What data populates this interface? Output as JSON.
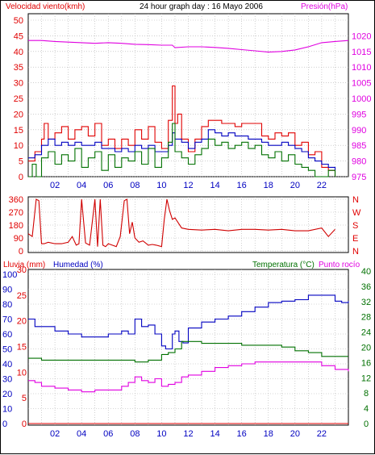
{
  "chart_data": [
    {
      "type": "line",
      "header": {
        "left_label": "Velocidad viento(kmh)",
        "title": "24 hour graph day : 16 Mayo 2006",
        "right_label": "Presión(hPa)"
      },
      "left_ticks": [
        "0",
        "5",
        "10",
        "15",
        "20",
        "25",
        "30",
        "35",
        "40",
        "45",
        "50"
      ],
      "right_ticks": [
        "975",
        "980",
        "985",
        "990",
        "995",
        "1000",
        "1005",
        "1010",
        "1015",
        "1020"
      ],
      "x_ticks": [
        "02",
        "04",
        "06",
        "08",
        "10",
        "12",
        "14",
        "16",
        "18",
        "20",
        "22"
      ],
      "xlim": [
        0,
        24
      ],
      "ylim_left": [
        0,
        50
      ],
      "ylim_right": [
        975,
        1025
      ],
      "series": [
        {
          "name": "Presión(hPa)",
          "axis": "right",
          "color": "#e000e0",
          "x": [
            0,
            1,
            2,
            3,
            4,
            5,
            6,
            7,
            8,
            9,
            10,
            10.8,
            11,
            12,
            13,
            14,
            15,
            16,
            17,
            18,
            19,
            20,
            21,
            22,
            23,
            24
          ],
          "y": [
            1018.5,
            1018.5,
            1018.2,
            1018,
            1017.8,
            1017.6,
            1017.8,
            1017.6,
            1017.3,
            1017.2,
            1017,
            1017,
            1016.2,
            1016.5,
            1016.5,
            1016.3,
            1016.0,
            1015.6,
            1015.2,
            1014.8,
            1015.0,
            1015.5,
            1016.5,
            1017.8,
            1018.2,
            1018.5
          ]
        },
        {
          "name": "Wind max",
          "axis": "left",
          "color": "#e00000",
          "x": [
            0,
            0.5,
            1,
            1.2,
            1.5,
            2,
            2.5,
            3,
            3.5,
            4,
            4.5,
            5,
            5.5,
            6,
            6.5,
            7,
            7.5,
            8,
            8.5,
            9,
            9.5,
            10,
            10.5,
            10.8,
            11,
            11.2,
            11.5,
            12,
            12.5,
            13,
            13.5,
            14,
            14.5,
            15,
            15.5,
            16,
            16.5,
            17,
            17.5,
            18,
            18.5,
            19,
            19.5,
            20,
            20.5,
            21,
            21.5,
            22,
            22.5,
            23
          ],
          "y": [
            5,
            8,
            12,
            17,
            12,
            14,
            16,
            12,
            15,
            16,
            13,
            17,
            10,
            12,
            9,
            12,
            10,
            15,
            12,
            16,
            11,
            9,
            18,
            29,
            17,
            20,
            12,
            8,
            12,
            16,
            18,
            18,
            17,
            17,
            16,
            17,
            17,
            17,
            13,
            12,
            14,
            13,
            14,
            10,
            11,
            7,
            8,
            3,
            2,
            0
          ]
        },
        {
          "name": "Wind avg",
          "axis": "left",
          "color": "#0000c0",
          "x": [
            0,
            0.5,
            1,
            1.5,
            2,
            2.5,
            3,
            3.5,
            4,
            4.5,
            5,
            5.5,
            6,
            6.5,
            7,
            7.5,
            8,
            8.5,
            9,
            9.5,
            10,
            10.5,
            10.8,
            11,
            11.5,
            12,
            12.5,
            13,
            13.5,
            14,
            14.5,
            15,
            15.5,
            16,
            16.5,
            17,
            17.5,
            18,
            18.5,
            19,
            19.5,
            20,
            20.5,
            21,
            21.5,
            22,
            22.5,
            23
          ],
          "y": [
            6,
            7,
            10,
            12,
            10,
            11,
            10,
            11,
            10,
            10,
            11,
            9,
            9,
            8,
            9,
            8,
            10,
            9,
            10,
            8,
            8,
            10,
            14,
            12,
            11,
            9,
            11,
            12,
            15,
            14,
            13,
            14,
            13,
            13,
            12,
            12,
            11,
            10,
            10,
            11,
            10,
            9,
            8,
            6,
            5,
            4,
            3,
            2
          ]
        },
        {
          "name": "Wind min",
          "axis": "left",
          "color": "#007000",
          "x": [
            0,
            0.3,
            0.6,
            1,
            1.5,
            2,
            2.5,
            3,
            3.5,
            4,
            4.5,
            5,
            5.5,
            6,
            6.5,
            7,
            7.5,
            8,
            8.5,
            9,
            9.5,
            10,
            10.5,
            10.8,
            11,
            11.5,
            12,
            12.5,
            13,
            13.5,
            14,
            14.5,
            15,
            15.5,
            16,
            16.5,
            17,
            17.5,
            18,
            18.5,
            19,
            19.5,
            20,
            20.5,
            21,
            21.5,
            22,
            22.5,
            23
          ],
          "y": [
            0,
            4,
            0,
            6,
            8,
            4,
            7,
            5,
            9,
            3,
            6,
            8,
            2,
            7,
            3,
            6,
            5,
            8,
            4,
            9,
            3,
            6,
            11,
            17,
            8,
            6,
            4,
            7,
            9,
            12,
            10,
            11,
            9,
            10,
            11,
            9,
            10,
            7,
            6,
            8,
            5,
            7,
            4,
            3,
            2,
            0,
            0,
            2,
            0
          ]
        }
      ]
    },
    {
      "type": "line",
      "left_ticks": [
        "0",
        "90",
        "180",
        "270",
        "360"
      ],
      "right_ticks": [
        "N",
        "E",
        "S",
        "W",
        "N"
      ],
      "ylim": [
        0,
        360
      ],
      "xlim": [
        0,
        24
      ],
      "series": [
        {
          "name": "Dirección",
          "color": "#d00000",
          "x": [
            0,
            0.3,
            0.6,
            0.8,
            1,
            1.2,
            1.5,
            2,
            2.5,
            3,
            3.3,
            3.6,
            3.8,
            4,
            4.3,
            4.6,
            5,
            5.2,
            5.4,
            5.6,
            5.8,
            6,
            6.3,
            6.6,
            6.9,
            7.2,
            7.4,
            7.6,
            7.8,
            8,
            8.3,
            8.6,
            9,
            9.3,
            9.6,
            10,
            10.2,
            10.4,
            10.6,
            10.8,
            11,
            11.5,
            12,
            13,
            14,
            15,
            16,
            17,
            18,
            19,
            20,
            21,
            22,
            22.5,
            23
          ],
          "y": [
            120,
            100,
            360,
            350,
            50,
            50,
            60,
            50,
            50,
            60,
            100,
            40,
            50,
            360,
            55,
            40,
            360,
            30,
            360,
            40,
            30,
            50,
            40,
            30,
            100,
            350,
            360,
            120,
            200,
            90,
            60,
            70,
            40,
            45,
            40,
            30,
            220,
            360,
            280,
            220,
            230,
            160,
            150,
            145,
            150,
            140,
            150,
            150,
            145,
            150,
            140,
            140,
            160,
            100,
            150
          ]
        }
      ]
    },
    {
      "type": "line",
      "header": {
        "left_label_1": "Lluvia (mm)",
        "left_label_2": "Humedad (%)",
        "right_label_1": "Temperatura (°C)",
        "right_label_2": "Punto rocío"
      },
      "rain_ticks": [
        "0",
        "5",
        "10",
        "15",
        "20",
        "25",
        "30"
      ],
      "hum_ticks": [
        "0",
        "10",
        "20",
        "30",
        "40",
        "50",
        "60",
        "70",
        "80",
        "90",
        "100"
      ],
      "temp_ticks": [
        "0",
        "4",
        "8",
        "12",
        "16",
        "20",
        "24",
        "28",
        "32",
        "36",
        "40"
      ],
      "x_ticks": [
        "02",
        "04",
        "06",
        "08",
        "10",
        "12",
        "14",
        "16",
        "18",
        "20",
        "22"
      ],
      "xlim": [
        0,
        24
      ],
      "ylim_left": [
        0,
        100
      ],
      "ylim_right": [
        0,
        40
      ],
      "series": [
        {
          "name": "Humedad (%)",
          "axis": "left",
          "color": "#0000c0",
          "x": [
            0,
            0.5,
            1,
            2,
            3,
            4,
            5,
            6,
            7,
            7.5,
            8,
            8.5,
            9,
            9.5,
            10,
            10.3,
            10.8,
            11,
            11.3,
            11.6,
            12,
            13,
            14,
            15,
            16,
            17,
            18,
            19,
            20,
            21,
            22,
            23,
            23.5,
            24
          ],
          "y": [
            70,
            65,
            65,
            62,
            60,
            58,
            58,
            60,
            62,
            60,
            70,
            65,
            66,
            60,
            52,
            50,
            60,
            62,
            55,
            54,
            64,
            68,
            70,
            72,
            75,
            78,
            81,
            82,
            83,
            86,
            86,
            82,
            81,
            82
          ]
        },
        {
          "name": "Temperatura (°C)",
          "axis": "right",
          "color": "#007000",
          "x": [
            0,
            1,
            2,
            3,
            4,
            5,
            6,
            7,
            8,
            9,
            10,
            10.5,
            11,
            11.5,
            12,
            13,
            14,
            15,
            16,
            17,
            18,
            19,
            20,
            21,
            22,
            23,
            24
          ],
          "y": [
            17.5,
            17,
            17,
            17,
            17,
            17,
            17,
            17,
            16.5,
            17,
            18.5,
            19,
            20,
            22,
            22,
            21.5,
            21.5,
            21.5,
            21,
            21,
            21,
            20.5,
            19.5,
            19,
            18,
            18,
            18
          ]
        },
        {
          "name": "Punto rocío",
          "axis": "right",
          "color": "#e000e0",
          "x": [
            0,
            0.5,
            1,
            2,
            3,
            4,
            5,
            6,
            7,
            7.5,
            8,
            8.5,
            9,
            9.5,
            10,
            10.5,
            11,
            11.5,
            12,
            13,
            14,
            15,
            16,
            17,
            18,
            19,
            20,
            21,
            22,
            23,
            24
          ],
          "y": [
            11.5,
            11,
            10,
            9.5,
            9,
            8.5,
            9,
            9,
            10,
            11,
            12.5,
            11.5,
            11,
            12,
            10,
            10.5,
            11,
            12.5,
            13,
            14,
            15,
            15.5,
            16,
            16.5,
            16.5,
            16.5,
            16.5,
            16.5,
            15.5,
            14.5,
            14
          ]
        },
        {
          "name": "Lluvia (mm)",
          "axis": "rain",
          "color": "#e00000",
          "x": [
            0,
            24
          ],
          "y": [
            0,
            0
          ]
        }
      ]
    }
  ]
}
